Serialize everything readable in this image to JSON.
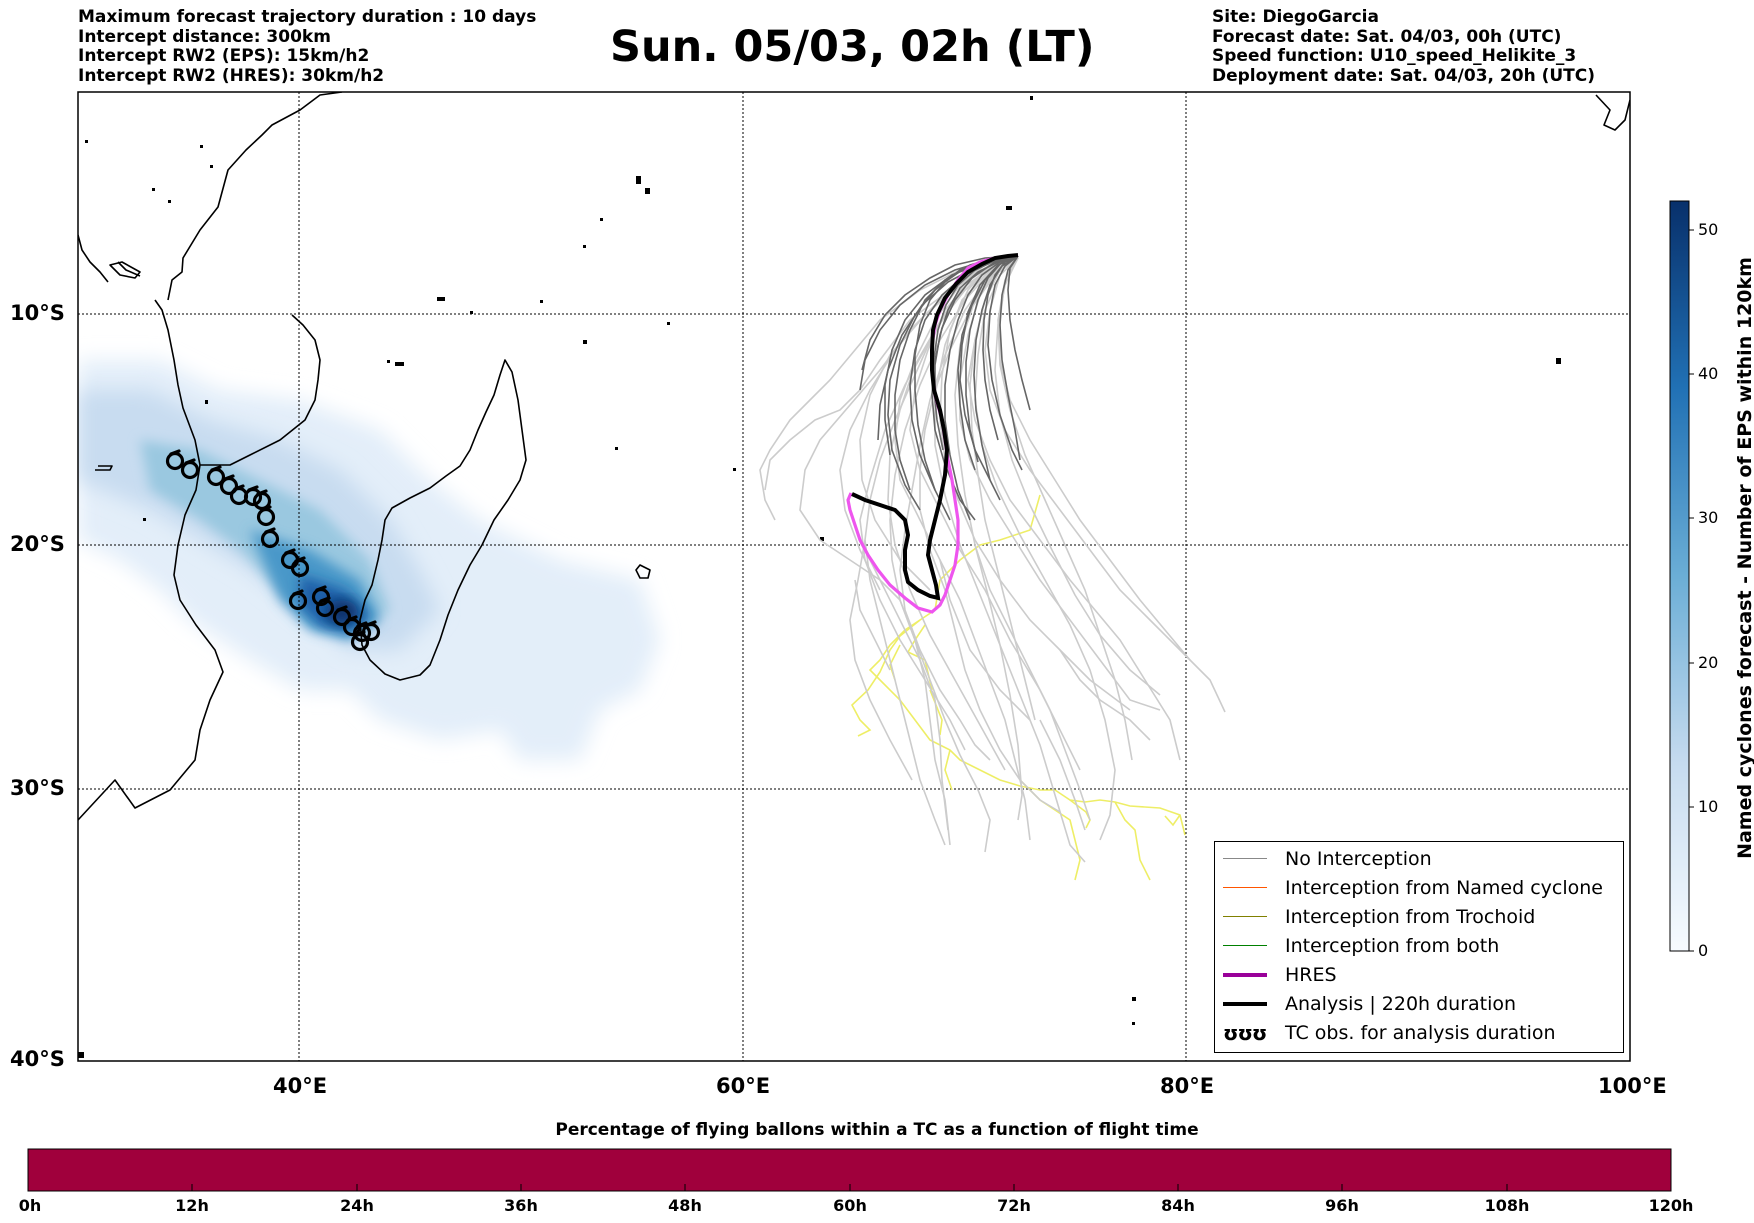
{
  "header_left": [
    "Maximum forecast trajectory duration : 10 days",
    "Intercept distance: 300km",
    "Intercept RW2 (EPS):  15km/h2",
    "Intercept RW2 (HRES): 30km/h2"
  ],
  "title": "Sun. 05/03, 02h (LT)",
  "header_right": [
    "Site: DiegoGarcia",
    "Forecast date: Sat. 04/03, 00h (UTC)",
    "Speed function: U10_speed_Helikite_3",
    "Deployment date: Sat. 04/03, 20h (UTC)"
  ],
  "map": {
    "lon_range": [
      30,
      100
    ],
    "lat_range": [
      -40,
      0
    ],
    "lat_labels": [
      "10°S",
      "20°S",
      "30°S",
      "40°S"
    ],
    "lon_labels": [
      "40°E",
      "60°E",
      "80°E",
      "100°E"
    ],
    "grid": true,
    "grid_style": "dotted"
  },
  "colorbar": {
    "title": "Named cyclones forecast - Number of EPS within 120km",
    "ticks": [
      "0",
      "10",
      "20",
      "30",
      "40",
      "50"
    ],
    "range": [
      0,
      52
    ],
    "colormap": "Blues"
  },
  "legend": {
    "items": [
      {
        "label": "No Interception",
        "color": "#888888",
        "style": "thin"
      },
      {
        "label": "Interception from Named cyclone",
        "color": "#ff5500",
        "style": "thin"
      },
      {
        "label": "Interception from Trochoid",
        "color": "#808000",
        "style": "thin"
      },
      {
        "label": "Interception from both",
        "color": "#008000",
        "style": "thin"
      },
      {
        "label": "HRES",
        "color": "#990099",
        "style": "thick"
      },
      {
        "label": "Analysis | 220h duration",
        "color": "#000000",
        "style": "thick"
      },
      {
        "label": "TC obs. for analysis duration",
        "color": "#000000",
        "style": "symbol",
        "symbol": "ʊʊʊ"
      }
    ]
  },
  "bottom_bar": {
    "title": "Percentage of flying ballons within a TC as a function of flight time",
    "labels": [
      "0h",
      "12h",
      "24h",
      "36h",
      "48h",
      "60h",
      "72h",
      "84h",
      "96h",
      "108h",
      "120h"
    ],
    "fill_color": "#a0003c"
  },
  "colors": {
    "hres": "#ee55ee",
    "analysis": "#000000",
    "eps_dark": "#666666",
    "eps_light": "#cccccc",
    "cyclone_track": "#eeee66"
  }
}
